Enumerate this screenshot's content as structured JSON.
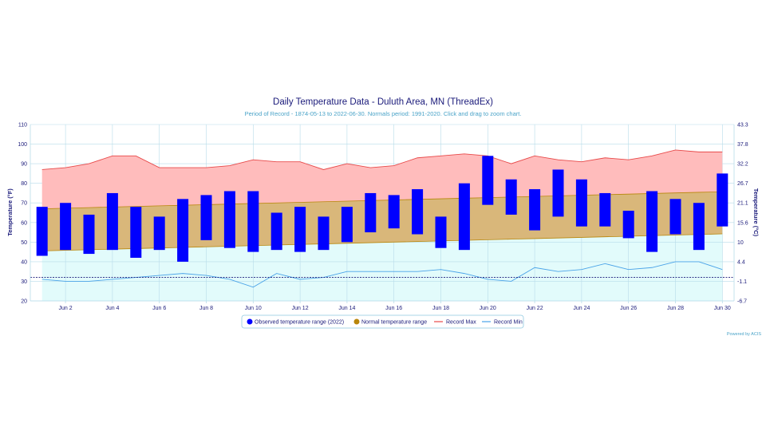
{
  "chart_data": {
    "type": "bar",
    "title": "Daily Temperature Data - Duluth Area, MN (ThreadEx)",
    "subtitle": "Period of Record - 1874-05-13 to 2022-06-30. Normals period: 1991-2020. Click and drag to zoom chart.",
    "ylabel": "Temperature (°F)",
    "ylabel_right": "Temperature (°C)",
    "ylim": [
      20,
      110
    ],
    "y_ticks": [
      "20",
      "30",
      "40",
      "50",
      "60",
      "70",
      "80",
      "90",
      "100",
      "110"
    ],
    "y_ticks_right": [
      "-6.7",
      "-1.1",
      "4.4",
      "10",
      "15.6",
      "21.1",
      "26.7",
      "32.2",
      "37.8",
      "43.3"
    ],
    "x_tick_labels": [
      "Jun 2",
      "Jun 4",
      "Jun 6",
      "Jun 8",
      "Jun 10",
      "Jun 12",
      "Jun 14",
      "Jun 16",
      "Jun 18",
      "Jun 20",
      "Jun 22",
      "Jun 24",
      "Jun 26",
      "Jun 28",
      "Jun 30"
    ],
    "x_tick_days": [
      2,
      4,
      6,
      8,
      10,
      12,
      14,
      16,
      18,
      20,
      22,
      24,
      26,
      28,
      30
    ],
    "days": [
      1,
      2,
      3,
      4,
      5,
      6,
      7,
      8,
      9,
      10,
      11,
      12,
      13,
      14,
      15,
      16,
      17,
      18,
      19,
      20,
      21,
      22,
      23,
      24,
      25,
      26,
      27,
      28,
      29,
      30
    ],
    "series": [
      {
        "name": "Observed temperature range (2022)",
        "color": "#0000ff",
        "low": [
          43,
          46,
          44,
          46,
          42,
          46,
          40,
          51,
          47,
          45,
          46,
          45,
          46,
          50,
          55,
          57,
          54,
          47,
          46,
          69,
          64,
          56,
          63,
          58,
          58,
          52,
          45,
          54,
          46,
          58
        ],
        "high": [
          68,
          70,
          64,
          75,
          68,
          63,
          72,
          74,
          76,
          76,
          65,
          68,
          63,
          68,
          75,
          74,
          77,
          63,
          80,
          94,
          82,
          77,
          87,
          82,
          75,
          66,
          76,
          72,
          70,
          85
        ]
      },
      {
        "name": "Normal temperature range",
        "color": "#b8860b",
        "low": [
          45.5,
          45.8,
          46.1,
          46.4,
          46.7,
          47,
          47.3,
          47.6,
          47.9,
          48.2,
          48.5,
          48.8,
          49.1,
          49.4,
          49.7,
          50,
          50.3,
          50.6,
          50.9,
          51.2,
          51.5,
          51.8,
          52.1,
          52.4,
          52.7,
          53,
          53.3,
          53.6,
          53.9,
          54.2
        ],
        "high": [
          67,
          67.3,
          67.6,
          67.9,
          68.2,
          68.5,
          68.8,
          69.1,
          69.4,
          69.7,
          70,
          70.3,
          70.6,
          70.9,
          71.2,
          71.5,
          71.8,
          72.1,
          72.4,
          72.7,
          73,
          73.3,
          73.6,
          73.9,
          74.2,
          74.5,
          74.8,
          75.1,
          75.4,
          75.7
        ]
      },
      {
        "name": "Record Max",
        "color": "#e84a4a",
        "values": [
          87,
          88,
          90,
          94,
          94,
          88,
          88,
          88,
          89,
          92,
          91,
          91,
          87,
          90,
          88,
          89,
          93,
          94,
          95,
          94,
          90,
          94,
          92,
          91,
          93,
          92,
          94,
          97,
          96,
          96
        ]
      },
      {
        "name": "Record Min",
        "color": "#4aa3e8",
        "values": [
          31,
          30,
          30,
          31,
          32,
          33,
          34,
          33,
          31,
          27,
          34,
          31,
          32,
          35,
          35,
          35,
          35,
          36,
          34,
          31,
          30,
          37,
          35,
          36,
          39,
          36,
          37,
          40,
          40,
          36
        ]
      }
    ],
    "reference_line": {
      "value": 32,
      "color": "#1a1a7a"
    },
    "colors": {
      "record_band": "#ffbcbc",
      "normal_band": "#d9b77a",
      "below_normal": "#e2fbfb",
      "grid": "#b8dcea",
      "axis_text": "#1a1a7a"
    },
    "legend_position": "bottom-center",
    "credit": "Powered by ACIS"
  }
}
